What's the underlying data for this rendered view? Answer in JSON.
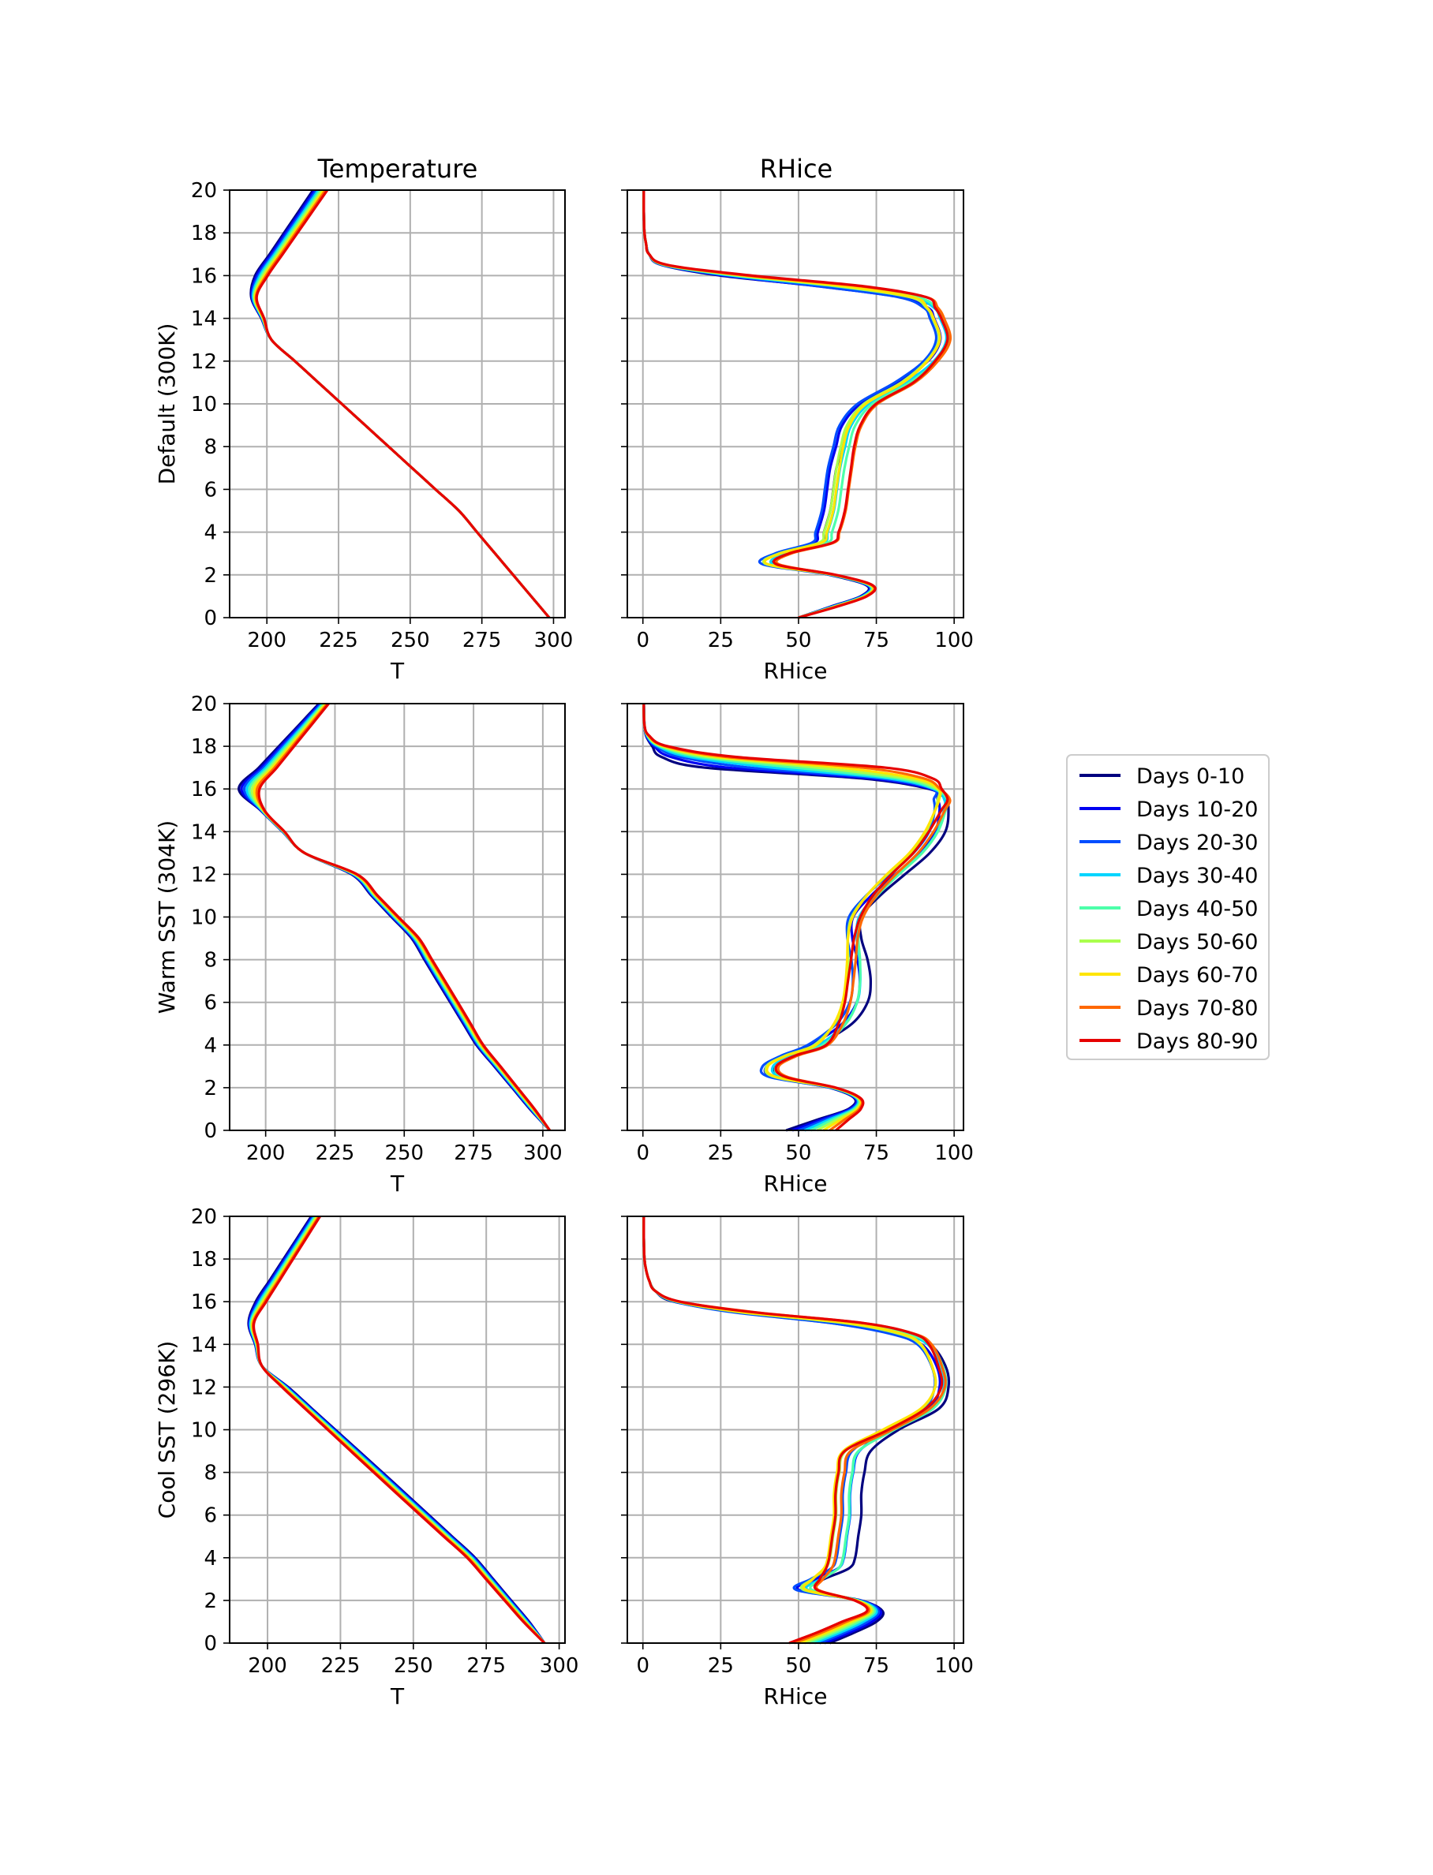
{
  "legend": [
    {
      "label": "Days 0-10",
      "color": "#00007f"
    },
    {
      "label": "Days 10-20",
      "color": "#0000f1"
    },
    {
      "label": "Days 20-30",
      "color": "#004dff"
    },
    {
      "label": "Days 30-40",
      "color": "#00d5ff"
    },
    {
      "label": "Days 40-50",
      "color": "#4dffaa"
    },
    {
      "label": "Days 50-60",
      "color": "#aaff4d"
    },
    {
      "label": "Days 60-70",
      "color": "#ffe500"
    },
    {
      "label": "Days 70-80",
      "color": "#ff6800"
    },
    {
      "label": "Days 80-90",
      "color": "#e60000"
    }
  ],
  "chart_data": [
    {
      "type": "line",
      "title": "Temperature",
      "ylabel": "Default (300K)",
      "xlabel": "T",
      "xlim": [
        187,
        304
      ],
      "ylim": [
        0,
        20
      ],
      "xticks": [
        200,
        225,
        250,
        275,
        300
      ],
      "yticks": [
        0,
        2,
        4,
        6,
        8,
        10,
        12,
        14,
        16,
        18,
        20
      ],
      "grid": true,
      "y": [
        0,
        1,
        2,
        3,
        4,
        5,
        6,
        7,
        8,
        9,
        10,
        11,
        12,
        13,
        14,
        15,
        16,
        17,
        18,
        19,
        20
      ],
      "series_kind": "temp",
      "Tsfc": 298.5,
      "sfcEnd": 5,
      "tmin": 194.5,
      "zt": 15.3,
      "t13": 201.6,
      "t20": 218.6,
      "mid": [],
      "spread": {
        "tmin": 3.0,
        "zt": 0.25,
        "t20": 5.0
      },
      "lower": {
        "spread": 0,
        "start": 0
      }
    },
    {
      "type": "line",
      "title": "RHice",
      "xlabel": "RHice",
      "xlim": [
        -5,
        103
      ],
      "ylim": [
        0,
        20
      ],
      "xticks": [
        0,
        25,
        50,
        75,
        100
      ],
      "yticks": [
        0,
        2,
        4,
        6,
        8,
        10,
        12,
        14,
        16,
        18,
        20
      ],
      "grid": true,
      "series_kind": "rh",
      "y": [
        0,
        0.5,
        1,
        1.5,
        2,
        2.5,
        3,
        3.5,
        4,
        5,
        6,
        7,
        8,
        9,
        10,
        11,
        12,
        13,
        14,
        14.5,
        15,
        15.5,
        16,
        16.5,
        17,
        17.5,
        18,
        19,
        20
      ],
      "rh_first": [
        50,
        60,
        70,
        72,
        60,
        40,
        44,
        55,
        56,
        58,
        59,
        60,
        62,
        64,
        70,
        82,
        92,
        96,
        94,
        92,
        82,
        55,
        25,
        6,
        2,
        1,
        0.5,
        0.3,
        0.3
      ],
      "rh_last": [
        50,
        62,
        72,
        74,
        62,
        42,
        46,
        60,
        62,
        64,
        65,
        66,
        67,
        69,
        74,
        86,
        93,
        97,
        95,
        93,
        90,
        70,
        35,
        8,
        2,
        1,
        0.5,
        0.3,
        0.3
      ]
    },
    {
      "type": "line",
      "ylabel": "Warm SST (304K)",
      "xlabel": "T",
      "xlim": [
        187,
        308
      ],
      "ylim": [
        0,
        20
      ],
      "xticks": [
        200,
        225,
        250,
        275,
        300
      ],
      "yticks": [
        0,
        2,
        4,
        6,
        8,
        10,
        12,
        14,
        16,
        18,
        20
      ],
      "grid": true,
      "y": [
        0,
        1,
        2,
        3,
        4,
        5,
        6,
        7,
        8,
        9,
        10,
        11,
        12,
        13,
        14,
        15,
        16,
        17,
        18,
        19,
        20
      ],
      "series_kind": "temp",
      "Tsfc": 302.5,
      "sfcEnd": 4,
      "tmin": 192.8,
      "zt": 15.8,
      "t13": 214.0,
      "t20": 221.0,
      "mid": [
        [
          9,
          254
        ],
        [
          12,
          232
        ]
      ],
      "spread": {
        "tmin": 5.0,
        "zt": 0.4,
        "t20": 3.5
      },
      "lower": {
        "spread": 2.8,
        "start": 1
      }
    },
    {
      "type": "line",
      "xlabel": "RHice",
      "xlim": [
        -5,
        103
      ],
      "ylim": [
        0,
        20
      ],
      "xticks": [
        0,
        25,
        50,
        75,
        100
      ],
      "yticks": [
        0,
        2,
        4,
        6,
        8,
        10,
        12,
        14,
        16,
        18,
        20
      ],
      "grid": true,
      "series_kind": "rh",
      "y": [
        0,
        0.5,
        1,
        1.5,
        2,
        2.5,
        3,
        3.5,
        4,
        5,
        6,
        7,
        8,
        9,
        10,
        11,
        12,
        13,
        14,
        15,
        15.5,
        16,
        16.5,
        17,
        17.5,
        18,
        18.5,
        19,
        20
      ],
      "rh_first": [
        46,
        56,
        66,
        68,
        60,
        42,
        40,
        46,
        54,
        65,
        70,
        71,
        70,
        68,
        68,
        74,
        82,
        90,
        95,
        96,
        95,
        92,
        70,
        20,
        6,
        3,
        1,
        0.5,
        0.3
      ],
      "rh_last": [
        62,
        66,
        70,
        70,
        62,
        45,
        42,
        48,
        58,
        62,
        64,
        65,
        66,
        67,
        69,
        73,
        79,
        86,
        91,
        95,
        97,
        96,
        93,
        78,
        30,
        8,
        2,
        0.5,
        0.3
      ]
    },
    {
      "type": "line",
      "ylabel": "Cool SST (296K)",
      "xlabel": "T",
      "xlim": [
        187,
        302
      ],
      "ylim": [
        0,
        20
      ],
      "xticks": [
        200,
        225,
        250,
        275,
        300
      ],
      "yticks": [
        0,
        2,
        4,
        6,
        8,
        10,
        12,
        14,
        16,
        18,
        20
      ],
      "grid": true,
      "y": [
        0,
        1,
        2,
        3,
        4,
        5,
        6,
        7,
        8,
        9,
        10,
        11,
        12,
        13,
        14,
        15,
        16,
        17,
        18,
        19,
        20
      ],
      "series_kind": "temp",
      "Tsfc": 295.0,
      "sfcEnd": 4,
      "tmin": 194.0,
      "zt": 15.2,
      "t13": 198.0,
      "t20": 216.5,
      "mid": [],
      "spread": {
        "tmin": 2.5,
        "zt": 0.25,
        "t20": 3.0
      },
      "lower": {
        "spread": -3.0,
        "start": 0.5
      }
    },
    {
      "type": "line",
      "xlabel": "RHice",
      "xlim": [
        -5,
        103
      ],
      "ylim": [
        0,
        20
      ],
      "xticks": [
        0,
        25,
        50,
        75,
        100
      ],
      "yticks": [
        0,
        2,
        4,
        6,
        8,
        10,
        12,
        14,
        16,
        18,
        20
      ],
      "grid": true,
      "series_kind": "rh",
      "y": [
        0,
        0.5,
        1,
        1.5,
        2,
        2.5,
        3,
        3.5,
        4,
        5,
        6,
        7,
        8,
        9,
        10,
        11,
        12,
        13,
        14,
        14.5,
        15,
        15.5,
        16,
        16.5,
        17,
        17.5,
        18,
        19,
        20
      ],
      "rh_first": [
        60,
        68,
        75,
        77,
        70,
        50,
        56,
        64,
        66,
        67,
        68,
        68,
        69,
        71,
        80,
        93,
        96,
        95,
        90,
        80,
        60,
        30,
        10,
        4,
        2,
        1,
        0.5,
        0.3,
        0.3
      ],
      "rh_last": [
        47,
        56,
        64,
        72,
        68,
        55,
        56,
        58,
        59,
        60,
        61,
        61,
        62,
        64,
        78,
        90,
        95,
        94,
        91,
        86,
        70,
        35,
        12,
        4,
        2,
        1,
        0.5,
        0.3,
        0.3
      ]
    }
  ]
}
